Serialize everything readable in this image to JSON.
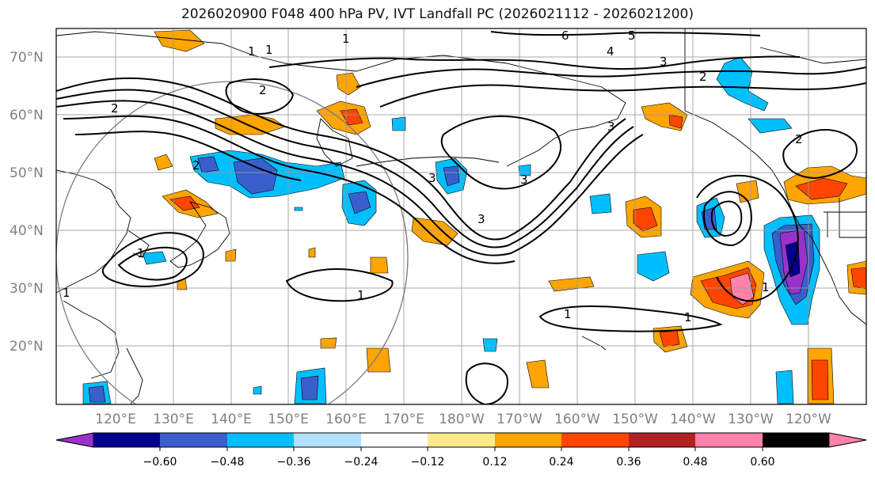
{
  "title": "2026020900 F048 400 hPa PV, IVT Landfall PC (2026021112 - 2026021200)",
  "latitude_labels": [
    "70°N",
    "60°N",
    "50°N",
    "40°N",
    "30°N",
    "20°N"
  ],
  "longitude_labels": [
    "120°E",
    "130°E",
    "140°E",
    "150°E",
    "160°E",
    "170°E",
    "180°W",
    "170°W",
    "160°W",
    "150°W",
    "140°W",
    "130°W",
    "120°W"
  ],
  "contour_labels": [
    "1",
    "1",
    "1",
    "2",
    "2",
    "2",
    "3",
    "3",
    "3",
    "3",
    "4",
    "5",
    "6",
    "3",
    "2",
    "2",
    "1",
    "1",
    "1",
    "1",
    "1",
    "1"
  ],
  "colorbar": {
    "tick_labels": [
      "−0.60",
      "−0.48",
      "−0.36",
      "−0.24",
      "−0.12",
      "0.12",
      "0.24",
      "0.36",
      "0.48",
      "0.60"
    ],
    "colors": [
      "#9932cc",
      "#00008b",
      "#3a5fcd",
      "#00bfff",
      "#b0e2ff",
      "#ffffff",
      "#ffe98a",
      "#ffa500",
      "#ff4500",
      "#b22222",
      "#ff82ab"
    ],
    "extend_low_color": "#9932cc",
    "extend_high_color": "#ff82ab"
  }
}
